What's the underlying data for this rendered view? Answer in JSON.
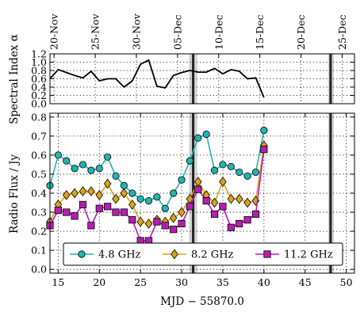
{
  "chart_data": [
    {
      "type": "line",
      "ylabel": "Spectral Index α",
      "xlim": [
        14,
        51
      ],
      "ylim": [
        0,
        1.2
      ],
      "yticks": [
        0.0,
        0.2,
        0.4,
        0.6,
        0.8,
        1.0,
        1.2
      ],
      "ytick_labels": [
        "0.0",
        "0.2",
        "0.4",
        "0.6",
        "0.8",
        "1.0",
        "1.2"
      ],
      "grid": true,
      "top_axis_dates": [
        {
          "mjd": 14.5,
          "label": "20-Nov"
        },
        {
          "mjd": 19.5,
          "label": "25-Nov"
        },
        {
          "mjd": 24.5,
          "label": "30-Nov"
        },
        {
          "mjd": 29.5,
          "label": "05-Dec"
        },
        {
          "mjd": 34.5,
          "label": "10-Dec"
        },
        {
          "mjd": 39.5,
          "label": "15-Dec"
        },
        {
          "mjd": 44.5,
          "label": "20-Dec"
        },
        {
          "mjd": 49.5,
          "label": "25-Dec"
        }
      ],
      "series": [
        {
          "x": [
            14,
            15,
            16,
            17,
            18,
            19,
            20,
            21,
            22,
            23,
            24,
            25,
            26,
            27,
            28,
            29,
            30,
            31,
            32,
            33,
            34,
            35,
            36,
            37,
            38,
            39,
            40
          ],
          "y": [
            0.6,
            0.82,
            0.75,
            0.68,
            0.62,
            0.78,
            0.55,
            0.6,
            0.6,
            0.4,
            0.55,
            0.95,
            1.05,
            0.42,
            0.38,
            0.68,
            0.75,
            0.8,
            0.76,
            0.76,
            0.85,
            0.72,
            0.82,
            0.78,
            0.6,
            0.62,
            0.15
          ]
        }
      ],
      "color": "#000000"
    },
    {
      "type": "line",
      "ylabel": "Radio Flux / Jy",
      "xlabel": "MJD − 55870.0",
      "xlim": [
        14,
        51
      ],
      "ylim": [
        -0.02,
        0.82
      ],
      "xticks": [
        15,
        20,
        25,
        30,
        35,
        40,
        45,
        50
      ],
      "yticks": [
        0.0,
        0.1,
        0.2,
        0.3,
        0.4,
        0.5,
        0.6,
        0.7,
        0.8
      ],
      "ytick_labels": [
        "0.0",
        "0.1",
        "0.2",
        "0.3",
        "0.4",
        "0.5",
        "0.6",
        "0.7",
        "0.8"
      ],
      "grid": true,
      "legend": "bottom",
      "series": [
        {
          "name": "4.8 GHz",
          "color": "#22b5b0",
          "marker": "circle",
          "x": [
            14,
            15,
            16,
            17,
            18,
            19,
            20,
            21,
            22,
            23,
            24,
            25,
            26,
            27,
            28,
            29,
            30,
            31,
            32,
            33,
            34,
            35,
            36,
            37,
            38,
            39,
            40
          ],
          "y": [
            0.44,
            0.6,
            0.57,
            0.53,
            0.55,
            0.52,
            0.53,
            0.59,
            0.49,
            0.44,
            0.4,
            0.37,
            0.36,
            0.38,
            0.32,
            0.4,
            0.47,
            0.57,
            0.69,
            0.71,
            0.52,
            0.55,
            0.54,
            0.51,
            0.49,
            0.51,
            0.73
          ]
        },
        {
          "name": "8.2 GHz",
          "color": "#d9a31c",
          "marker": "diamond",
          "x": [
            14,
            15,
            16,
            17,
            18,
            19,
            20,
            21,
            22,
            23,
            24,
            25,
            26,
            27,
            28,
            29,
            30,
            31,
            32,
            33,
            34,
            35,
            36,
            37,
            38,
            39,
            40
          ],
          "y": [
            0.25,
            0.34,
            0.39,
            0.4,
            0.41,
            0.41,
            0.39,
            0.45,
            0.37,
            0.4,
            0.34,
            0.25,
            0.24,
            0.26,
            0.25,
            0.27,
            0.3,
            0.37,
            0.46,
            0.39,
            0.35,
            0.46,
            0.37,
            0.37,
            0.35,
            0.36,
            0.65
          ]
        },
        {
          "name": "11.2 GHz",
          "color": "#b51fb0",
          "marker": "square",
          "x": [
            14,
            15,
            16,
            17,
            18,
            19,
            20,
            21,
            22,
            23,
            24,
            25,
            26,
            27,
            28,
            29,
            30,
            31,
            32,
            33,
            34,
            35,
            36,
            37,
            38,
            39,
            40
          ],
          "y": [
            0.23,
            0.31,
            0.3,
            0.28,
            0.34,
            0.23,
            0.32,
            0.33,
            0.3,
            0.3,
            0.26,
            0.15,
            0.15,
            0.25,
            0.23,
            0.21,
            0.24,
            0.33,
            0.42,
            0.36,
            0.29,
            0.33,
            0.22,
            0.24,
            0.26,
            0.29,
            0.63
          ]
        }
      ]
    }
  ],
  "shaded_bands": [
    {
      "x0": 30.9,
      "x1": 31.9
    },
    {
      "x0": 47.8,
      "x1": 48.5
    }
  ],
  "vertical_lines": [
    31.4,
    48.1
  ]
}
